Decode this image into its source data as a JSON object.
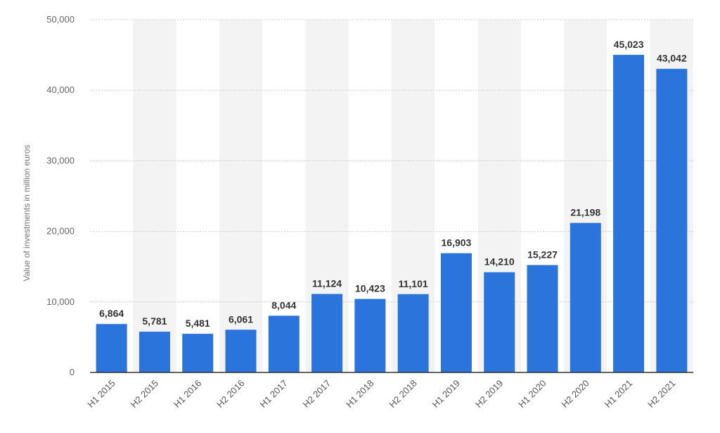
{
  "chart_data": {
    "type": "bar",
    "title": "",
    "xlabel": "",
    "ylabel": "Value of investments in million euros",
    "categories": [
      "H1 2015",
      "H2 2015",
      "H1 2016",
      "H2 2016",
      "H1 2017",
      "H2 2017",
      "H1 2018",
      "H2 2018",
      "H1 2019",
      "H2 2019",
      "H1 2020",
      "H2 2020",
      "H1 2021",
      "H2 2021"
    ],
    "values": [
      6864,
      5781,
      5481,
      6061,
      8044,
      11124,
      10423,
      11101,
      16903,
      14210,
      15227,
      21198,
      45023,
      43042
    ],
    "value_labels": [
      "6,864",
      "5,781",
      "5,481",
      "6,061",
      "8,044",
      "11,124",
      "10,423",
      "11,101",
      "16,903",
      "14,210",
      "15,227",
      "21,198",
      "45,023",
      "43,042"
    ],
    "ylim": [
      0,
      50000
    ],
    "yticks": [
      0,
      10000,
      20000,
      30000,
      40000,
      50000
    ],
    "ytick_labels": [
      "0",
      "10,000",
      "20,000",
      "30,000",
      "40,000",
      "50,000"
    ],
    "grid": true,
    "legend": "none",
    "colors": {
      "bar": "#2a74dc",
      "band": "#f3f3f3",
      "grid": "#cccccc",
      "axis": "#333333"
    }
  }
}
